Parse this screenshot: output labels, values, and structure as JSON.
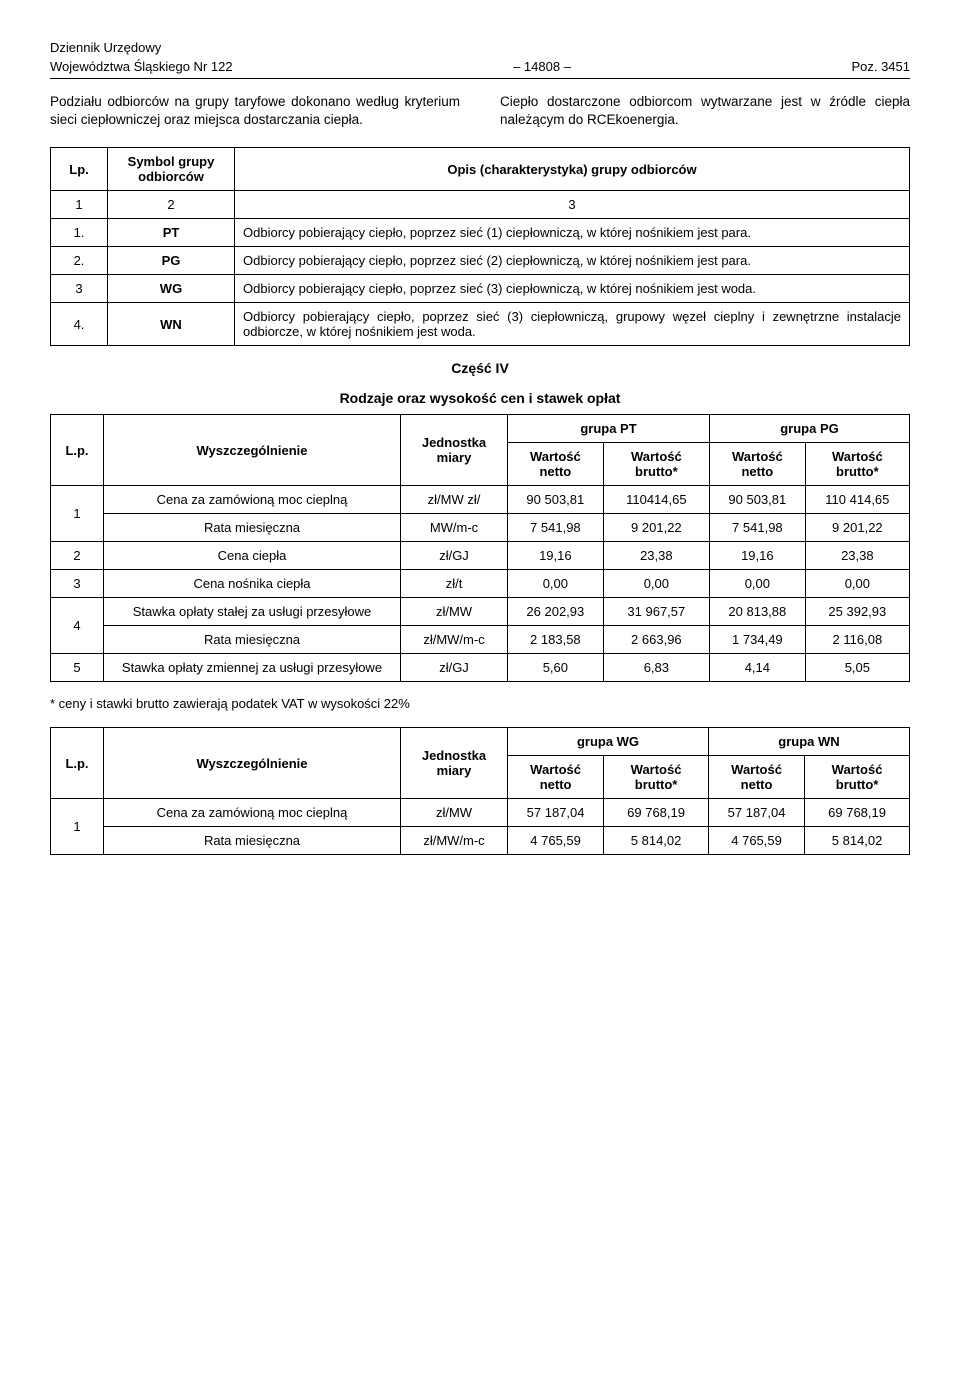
{
  "header": {
    "line1_left": "Dziennik Urzędowy",
    "line2_left": "Województwa Śląskiego Nr 122",
    "line2_center": "– 14808 –",
    "line2_right": "Poz. 3451"
  },
  "intro": {
    "left": "Podziału odbiorców na grupy taryfowe dokonano według kryterium sieci ciepłowniczej oraz miejsca dostarczania ciepła.",
    "right": "Ciepło dostarczone odbiorcom wytwarzane jest w źródle ciepła należącym do RCEkoenergia."
  },
  "table1": {
    "head_lp": "Lp.",
    "head_sym": "Symbol grupy odbiorców",
    "head_desc": "Opis (charakterystyka) grupy odbiorców",
    "num_row": [
      "1",
      "2",
      "3"
    ],
    "rows": [
      {
        "lp": "1.",
        "sym": "PT",
        "desc": "Odbiorcy pobierający ciepło, poprzez sieć (1) ciepłowniczą, w której nośnikiem jest para."
      },
      {
        "lp": "2.",
        "sym": "PG",
        "desc": "Odbiorcy pobierający ciepło, poprzez sieć (2) ciepłowniczą, w której nośnikiem jest para."
      },
      {
        "lp": "3",
        "sym": "WG",
        "desc": "Odbiorcy pobierający ciepło, poprzez sieć (3) ciepłowniczą, w której nośnikiem jest woda."
      },
      {
        "lp": "4.",
        "sym": "WN",
        "desc": "Odbiorcy pobierający ciepło, poprzez sieć (3) ciepłowniczą, grupowy węzeł cieplny i zewnętrzne instalacje odbiorcze, w której nośnikiem jest woda."
      }
    ]
  },
  "part4_title": "Część IV",
  "part4_sub": "Rodzaje oraz wysokość cen i stawek opłat",
  "table2": {
    "head_lp": "L.p.",
    "head_wys": "Wyszczególnienie",
    "head_unit": "Jednostka miary",
    "group_a": "grupa PT",
    "group_b": "grupa PG",
    "val_net": "Wartość netto",
    "val_gross": "Wartość brutto*",
    "rows": [
      {
        "lp": "1",
        "wys": "Cena za zamówioną moc cieplną",
        "unit": "zł/MW zł/",
        "a_net": "90 503,81",
        "a_gross": "110414,65",
        "b_net": "90 503,81",
        "b_gross": "110 414,65"
      },
      {
        "lp": "",
        "wys": "Rata miesięczna",
        "unit": "MW/m-c",
        "a_net": "7 541,98",
        "a_gross": "9 201,22",
        "b_net": "7 541,98",
        "b_gross": "9 201,22"
      },
      {
        "lp": "2",
        "wys": "Cena ciepła",
        "unit": "zł/GJ",
        "a_net": "19,16",
        "a_gross": "23,38",
        "b_net": "19,16",
        "b_gross": "23,38"
      },
      {
        "lp": "3",
        "wys": "Cena nośnika ciepła",
        "unit": "zł/t",
        "a_net": "0,00",
        "a_gross": "0,00",
        "b_net": "0,00",
        "b_gross": "0,00"
      },
      {
        "lp": "4",
        "wys": "Stawka opłaty stałej za usługi przesyłowe",
        "unit": "zł/MW",
        "a_net": "26 202,93",
        "a_gross": "31 967,57",
        "b_net": "20 813,88",
        "b_gross": "25 392,93"
      },
      {
        "lp": "",
        "wys": "Rata miesięczna",
        "unit": "zł/MW/m-c",
        "a_net": "2 183,58",
        "a_gross": "2 663,96",
        "b_net": "1 734,49",
        "b_gross": "2 116,08"
      },
      {
        "lp": "5",
        "wys": "Stawka opłaty zmiennej za usługi przesyłowe",
        "unit": "zł/GJ",
        "a_net": "5,60",
        "a_gross": "6,83",
        "b_net": "4,14",
        "b_gross": "5,05"
      }
    ]
  },
  "footnote": "*   ceny i stawki brutto zawierają podatek VAT w wysokości 22%",
  "table3": {
    "head_lp": "L.p.",
    "head_wys": "Wyszczególnienie",
    "head_unit": "Jednostka miary",
    "group_a": "grupa WG",
    "group_b": "grupa WN",
    "val_net": "Wartość netto",
    "val_gross": "Wartość brutto*",
    "rows": [
      {
        "lp": "1",
        "wys": "Cena za zamówioną moc cieplną",
        "unit": "zł/MW",
        "a_net": "57 187,04",
        "a_gross": "69 768,19",
        "b_net": "57 187,04",
        "b_gross": "69 768,19"
      },
      {
        "lp": "",
        "wys": "Rata miesięczna",
        "unit": "zł/MW/m-c",
        "a_net": "4 765,59",
        "a_gross": "5 814,02",
        "b_net": "4 765,59",
        "b_gross": "5 814,02"
      }
    ]
  }
}
